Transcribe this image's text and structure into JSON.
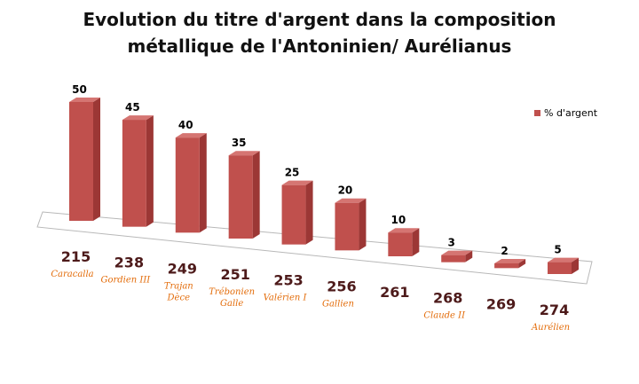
{
  "chart_data": {
    "type": "bar",
    "title_lines": [
      "Evolution du titre d'argent dans la composition",
      "métallique de l'Antoninien/ Aurélianus"
    ],
    "legend": {
      "label": "% d'argent"
    },
    "series": [
      {
        "name": "% d'argent",
        "values": [
          50,
          45,
          40,
          35,
          25,
          20,
          10,
          3,
          2,
          5
        ]
      }
    ],
    "categories": [
      "215",
      "238",
      "249",
      "251",
      "253",
      "256",
      "261",
      "268",
      "269",
      "274"
    ],
    "emperors": [
      [
        "Caracalla"
      ],
      [
        "Gordien III"
      ],
      [
        "Trajan",
        "Dèce"
      ],
      [
        "Trébonien",
        "Galle"
      ],
      [
        "Valérien I"
      ],
      [
        "Gallien"
      ],
      [],
      [
        "Claude II"
      ],
      [],
      [
        "Aurélien"
      ]
    ],
    "colors": {
      "bar_front": "#c0504d",
      "bar_side": "#9c3735",
      "bar_top": "#d57572",
      "year_text": "#4d1a1a",
      "emperor_text": "#e36c0a"
    }
  }
}
